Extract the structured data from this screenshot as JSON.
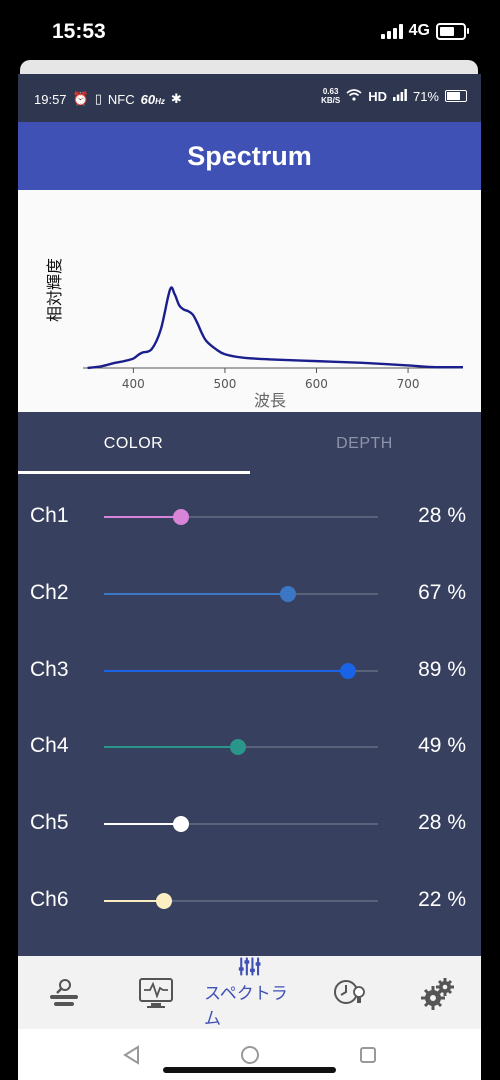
{
  "ios_status": {
    "time": "15:53",
    "network": "4G"
  },
  "android_status": {
    "time": "19:57",
    "nfc": "NFC",
    "refresh": "60",
    "refresh_unit": "Hz",
    "net_speed": "0.63",
    "net_unit": "KB/S",
    "hd": "HD",
    "battery": "71%",
    "battery_level": 0.71
  },
  "header": {
    "title": "Spectrum"
  },
  "chart_data": {
    "type": "line",
    "title": "",
    "xlabel": "波長",
    "ylabel": "相対輝度",
    "xlim": [
      345,
      760
    ],
    "ylim": [
      0,
      1
    ],
    "x_ticks": [
      "400",
      "500",
      "600",
      "700"
    ],
    "series": [
      {
        "color": "#1a1f8c",
        "x": [
          350,
          365,
          380,
          390,
          400,
          405,
          410,
          420,
          430,
          440,
          445,
          450,
          455,
          460,
          465,
          470,
          475,
          480,
          490,
          500,
          520,
          550,
          600,
          650,
          700,
          730,
          760
        ],
        "y": [
          0.0,
          0.02,
          0.06,
          0.08,
          0.11,
          0.15,
          0.18,
          0.22,
          0.45,
          0.91,
          0.86,
          0.73,
          0.68,
          0.66,
          0.62,
          0.52,
          0.4,
          0.31,
          0.22,
          0.16,
          0.12,
          0.1,
          0.08,
          0.06,
          0.03,
          0.01,
          0.01
        ]
      }
    ]
  },
  "tabs": [
    {
      "label": "COLOR",
      "active": true
    },
    {
      "label": "DEPTH",
      "active": false
    }
  ],
  "channels": [
    {
      "label": "Ch1",
      "value": 28,
      "value_text": "28 %",
      "color": "#d884d8"
    },
    {
      "label": "Ch2",
      "value": 67,
      "value_text": "67 %",
      "color": "#3b77c4"
    },
    {
      "label": "Ch3",
      "value": 89,
      "value_text": "89 %",
      "color": "#1a62e6"
    },
    {
      "label": "Ch4",
      "value": 49,
      "value_text": "49 %",
      "color": "#2a968a"
    },
    {
      "label": "Ch5",
      "value": 28,
      "value_text": "28 %",
      "color": "#ffffff"
    },
    {
      "label": "Ch6",
      "value": 22,
      "value_text": "22 %",
      "color": "#fbeec3"
    }
  ],
  "bottom_nav": {
    "items": [
      {
        "icon": "device-search-icon"
      },
      {
        "icon": "monitor-pulse-icon"
      },
      {
        "icon": "sliders-icon",
        "label": "スペクトラム",
        "active": true
      },
      {
        "icon": "clock-light-icon"
      },
      {
        "icon": "gears-icon"
      }
    ]
  }
}
